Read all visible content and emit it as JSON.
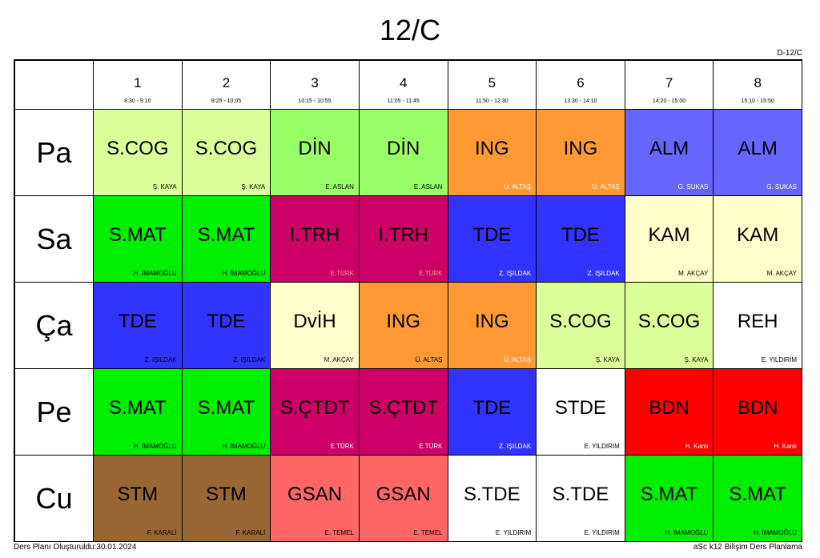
{
  "title": "12/C",
  "code": "D-12/C",
  "footer": {
    "created": "Ders Planı Oluşturuldu:30.01.2024",
    "software": "aSc k12 Bilişim Ders Planlama"
  },
  "periods": [
    {
      "num": "1",
      "time": "8:30 - 9:10"
    },
    {
      "num": "2",
      "time": "9:25 - 10:05"
    },
    {
      "num": "3",
      "time": "10:15 - 10:55"
    },
    {
      "num": "4",
      "time": "11:05 - 11:45"
    },
    {
      "num": "5",
      "time": "11:50 - 12:30"
    },
    {
      "num": "6",
      "time": "13:30 - 14:10"
    },
    {
      "num": "7",
      "time": "14:20 - 15:00"
    },
    {
      "num": "8",
      "time": "15:10 - 15:50"
    }
  ],
  "days": [
    {
      "label": "Pa",
      "lessons": [
        {
          "name": "S.COG",
          "teacher": "Ş. KAYA",
          "color": "#DDFF99",
          "text_color": "#000000"
        },
        {
          "name": "S.COG",
          "teacher": "Ş. KAYA",
          "color": "#DDFF99",
          "text_color": "#000000"
        },
        {
          "name": "DİN",
          "teacher": "E. ASLAN",
          "color": "#99FF66",
          "text_color": "#000000"
        },
        {
          "name": "DİN",
          "teacher": "E. ASLAN",
          "color": "#99FF66",
          "text_color": "#000000"
        },
        {
          "name": "ING",
          "teacher": "Ü. ALTAŞ",
          "color": "#FF9933",
          "text_color": "#FFFFFF"
        },
        {
          "name": "ING",
          "teacher": "Ü. ALTAŞ",
          "color": "#FF9933",
          "text_color": "#FFFFFF"
        },
        {
          "name": "ALM",
          "teacher": "G. SUKAS",
          "color": "#6666FF",
          "text_color": "#FFFFFF"
        },
        {
          "name": "ALM",
          "teacher": "G. SUKAS",
          "color": "#6666FF",
          "text_color": "#FFFFFF"
        }
      ]
    },
    {
      "label": "Sa",
      "lessons": [
        {
          "name": "S.MAT",
          "teacher": "H. İMAMOĞLU",
          "color": "#00EE00",
          "text_color": "#000000"
        },
        {
          "name": "S.MAT",
          "teacher": "H. İMAMOĞLU",
          "color": "#00EE00",
          "text_color": "#000000"
        },
        {
          "name": "I.TRH",
          "teacher": "E.TÜRK",
          "color": "#CC0066",
          "text_color": "#FF9999"
        },
        {
          "name": "I.TRH",
          "teacher": "E.TÜRK",
          "color": "#CC0066",
          "text_color": "#FF9999"
        },
        {
          "name": "TDE",
          "teacher": "Z. IŞILDAK",
          "color": "#3333FF",
          "text_color": "#FFFFFF"
        },
        {
          "name": "TDE",
          "teacher": "Z. IŞILDAK",
          "color": "#3333FF",
          "text_color": "#FFFFFF"
        },
        {
          "name": "KAM",
          "teacher": "M. AKÇAY",
          "color": "#FFFFCC",
          "text_color": "#000000"
        },
        {
          "name": "KAM",
          "teacher": "M. AKÇAY",
          "color": "#FFFFCC",
          "text_color": "#000000"
        }
      ]
    },
    {
      "label": "Ça",
      "lessons": [
        {
          "name": "TDE",
          "teacher": "Z. IŞILDAK",
          "color": "#3333FF",
          "text_color": "#000000"
        },
        {
          "name": "TDE",
          "teacher": "Z. IŞILDAK",
          "color": "#3333FF",
          "text_color": "#000000"
        },
        {
          "name": "DvİH",
          "teacher": "M. AKÇAY",
          "color": "#FFFFCC",
          "text_color": "#000000"
        },
        {
          "name": "ING",
          "teacher": "Ü. ALTAŞ",
          "color": "#FF9933",
          "text_color": "#000000"
        },
        {
          "name": "ING",
          "teacher": "Ü. ALTAŞ",
          "color": "#FF9933",
          "text_color": "#FFFFFF"
        },
        {
          "name": "S.COG",
          "teacher": "Ş. KAYA",
          "color": "#DDFF99",
          "text_color": "#000000"
        },
        {
          "name": "S.COG",
          "teacher": "Ş. KAYA",
          "color": "#DDFF99",
          "text_color": "#000000"
        },
        {
          "name": "REH",
          "teacher": "E. YILDIRIM",
          "color": "#FFFFFF",
          "text_color": "#000000"
        }
      ]
    },
    {
      "label": "Pe",
      "lessons": [
        {
          "name": "S.MAT",
          "teacher": "H. İMAMOĞLU",
          "color": "#00EE00",
          "text_color": "#000000"
        },
        {
          "name": "S.MAT",
          "teacher": "H. İMAMOĞLU",
          "color": "#00EE00",
          "text_color": "#000000"
        },
        {
          "name": "S.ÇTDT",
          "teacher": "E.TÜRK",
          "color": "#CC0066",
          "text_color": "#FFFFFF"
        },
        {
          "name": "S.ÇTDT",
          "teacher": "E.TÜRK",
          "color": "#CC0066",
          "text_color": "#FFFFFF"
        },
        {
          "name": "TDE",
          "teacher": "Z. IŞILDAK",
          "color": "#3333FF",
          "text_color": "#FFFFFF"
        },
        {
          "name": "STDE",
          "teacher": "E. YILDIRIM",
          "color": "#FFFFFF",
          "text_color": "#000000"
        },
        {
          "name": "BDN",
          "teacher": "H. Kanlı",
          "color": "#FF0000",
          "text_color": "#FFFFFF"
        },
        {
          "name": "BDN",
          "teacher": "H. Kanlı",
          "color": "#FF0000",
          "text_color": "#FFFFFF"
        }
      ]
    },
    {
      "label": "Cu",
      "lessons": [
        {
          "name": "STM",
          "teacher": "F. KARALİ",
          "color": "#996633",
          "text_color": "#000000"
        },
        {
          "name": "STM",
          "teacher": "F. KARALİ",
          "color": "#996633",
          "text_color": "#000000"
        },
        {
          "name": "GSAN",
          "teacher": "E. TEMEL",
          "color": "#FF6666",
          "text_color": "#000000"
        },
        {
          "name": "GSAN",
          "teacher": "E. TEMEL",
          "color": "#FF6666",
          "text_color": "#000000"
        },
        {
          "name": "S.TDE",
          "teacher": "E. YILDIRIM",
          "color": "#FFFFFF",
          "text_color": "#000000"
        },
        {
          "name": "S.TDE",
          "teacher": "E. YILDIRIM",
          "color": "#FFFFFF",
          "text_color": "#000000"
        },
        {
          "name": "S.MAT",
          "teacher": "H. İMAMOĞLU",
          "color": "#00EE00",
          "text_color": "#000000"
        },
        {
          "name": "S.MAT",
          "teacher": "H. İMAMOĞLU",
          "color": "#00EE00",
          "text_color": "#000000"
        }
      ]
    }
  ]
}
